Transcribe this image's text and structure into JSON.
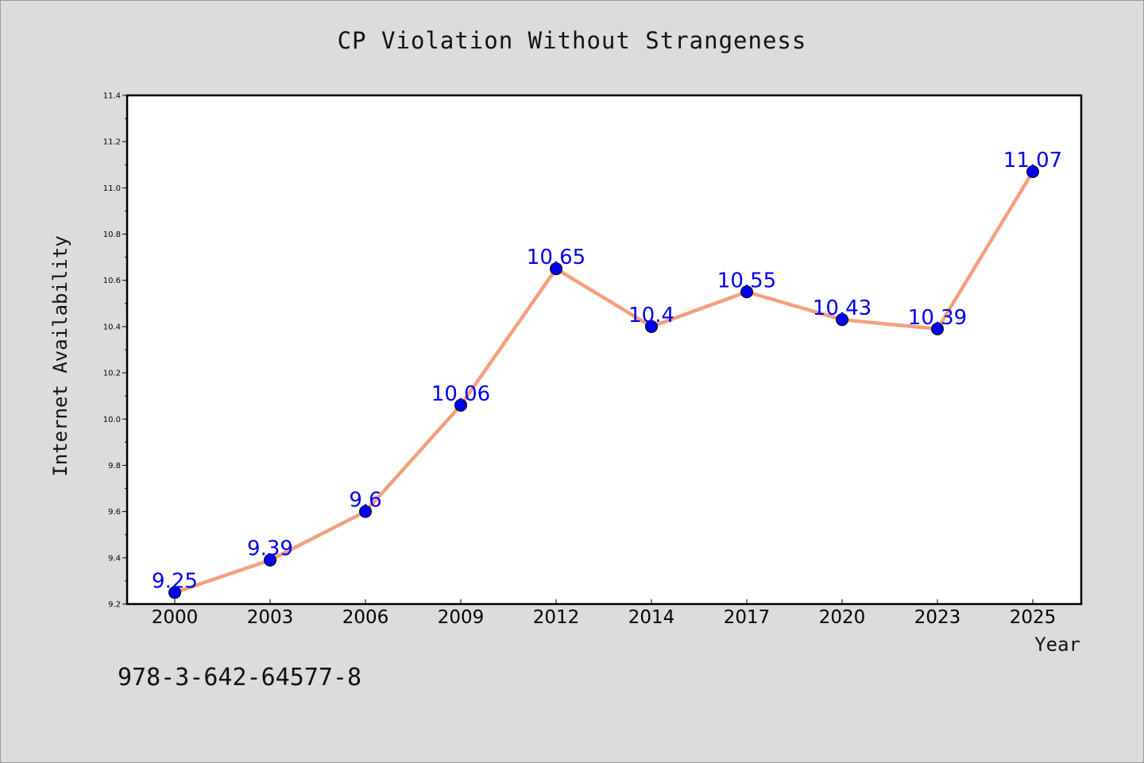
{
  "chart_data": {
    "type": "line",
    "title": "CP Violation Without Strangeness",
    "xlabel": "Year",
    "ylabel": "Internet Availability",
    "categories": [
      "2000",
      "2003",
      "2006",
      "2009",
      "2012",
      "2014",
      "2017",
      "2020",
      "2023",
      "2025"
    ],
    "series": [
      {
        "values": [
          9.25,
          9.39,
          9.6,
          10.06,
          10.65,
          10.4,
          10.55,
          10.43,
          10.39,
          11.07
        ],
        "data_labels": [
          "9.25",
          "9.39",
          "9.6",
          "10.06",
          "10.65",
          "10.4",
          "10.55",
          "10.43",
          "10.39",
          "11.07"
        ],
        "line_color": "#f4a07e",
        "marker_color": "#0000ee"
      }
    ],
    "ylim": [
      9.2,
      11.4
    ],
    "yticks": [
      "9.2",
      "9.4",
      "9.6",
      "9.8",
      "10.0",
      "10.2",
      "10.4",
      "10.6",
      "10.8",
      "11.0",
      "11.2",
      "11.4"
    ],
    "grid": false,
    "legend": false
  },
  "footer": {
    "isbn": "978-3-642-64577-8"
  },
  "colors": {
    "background": "#dcdcdc",
    "plot_background": "#ffffff",
    "label_color": "#0000ee"
  }
}
